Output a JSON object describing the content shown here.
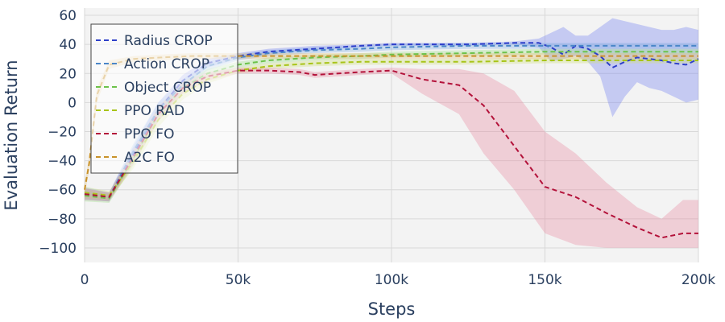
{
  "chart_data": {
    "type": "line",
    "xlabel": "Steps",
    "ylabel": "Evaluation Return",
    "xlim": [
      0,
      200000
    ],
    "ylim": [
      -110,
      65
    ],
    "x_ticks": [
      0,
      50000,
      100000,
      150000,
      200000
    ],
    "x_tick_labels": [
      "0",
      "50k",
      "100k",
      "150k",
      "200k"
    ],
    "y_ticks": [
      60,
      40,
      20,
      0,
      -20,
      -40,
      -60,
      -80,
      -100
    ],
    "y_tick_labels": [
      "60",
      "40",
      "20",
      "0",
      "−20",
      "−40",
      "−60",
      "−80",
      "−100"
    ],
    "grid": true,
    "legend_position": "top-left",
    "series": [
      {
        "name": "Radius CROP",
        "color": "#2e3fc9",
        "band_color": "#6f7df0",
        "x": [
          0,
          8000,
          16000,
          24000,
          32000,
          40000,
          50000,
          60000,
          75000,
          90000,
          100000,
          110000,
          125000,
          140000,
          148000,
          152000,
          156000,
          160000,
          164000,
          168000,
          172000,
          176000,
          180000,
          184000,
          188000,
          192000,
          196000,
          200000
        ],
        "values": [
          -63,
          -65,
          -35,
          -5,
          15,
          27,
          32,
          35,
          37,
          39,
          40,
          40,
          40,
          41,
          41,
          38,
          33,
          39,
          37,
          32,
          24,
          28,
          31,
          30,
          29,
          27,
          26,
          30
        ],
        "lower": [
          -67,
          -68,
          -40,
          -10,
          11,
          24,
          30,
          33,
          36,
          38,
          39,
          39,
          39,
          40,
          38,
          28,
          30,
          32,
          28,
          18,
          -10,
          4,
          14,
          10,
          8,
          4,
          0,
          2
        ],
        "upper": [
          -59,
          -62,
          -30,
          0,
          19,
          30,
          34,
          37,
          39,
          40,
          41,
          41,
          41,
          42,
          44,
          48,
          52,
          46,
          46,
          52,
          58,
          56,
          54,
          52,
          50,
          50,
          52,
          50
        ]
      },
      {
        "name": "Action CROP",
        "color": "#4a86c8",
        "band_color": "#7fb0e6",
        "x": [
          0,
          8000,
          16000,
          24000,
          32000,
          40000,
          50000,
          60000,
          75000,
          90000,
          100000,
          125000,
          150000,
          175000,
          200000
        ],
        "values": [
          -62,
          -65,
          -33,
          -5,
          12,
          25,
          31,
          34,
          36,
          37,
          38,
          39,
          39,
          39,
          39
        ],
        "lower": [
          -66,
          -68,
          -38,
          -10,
          8,
          22,
          29,
          32,
          34,
          35,
          36,
          37,
          37,
          37,
          37
        ],
        "upper": [
          -58,
          -62,
          -28,
          0,
          16,
          28,
          33,
          36,
          38,
          39,
          40,
          41,
          41,
          41,
          41
        ]
      },
      {
        "name": "Object CROP",
        "color": "#6cc24a",
        "band_color": "#9ee08a",
        "x": [
          0,
          8000,
          16000,
          24000,
          32000,
          40000,
          50000,
          60000,
          75000,
          90000,
          100000,
          125000,
          150000,
          175000,
          200000
        ],
        "values": [
          -64,
          -66,
          -38,
          -8,
          10,
          20,
          26,
          29,
          31,
          32,
          33,
          34,
          35,
          35,
          35
        ],
        "lower": [
          -68,
          -69,
          -43,
          -13,
          6,
          17,
          24,
          27,
          29,
          30,
          31,
          32,
          33,
          33,
          33
        ],
        "upper": [
          -60,
          -63,
          -33,
          -3,
          14,
          23,
          28,
          31,
          33,
          34,
          35,
          36,
          37,
          37,
          37
        ]
      },
      {
        "name": "PPO RAD",
        "color": "#a8c418",
        "band_color": "#cfe07a",
        "x": [
          0,
          8000,
          16000,
          24000,
          32000,
          40000,
          50000,
          60000,
          75000,
          90000,
          100000,
          125000,
          150000,
          175000,
          200000
        ],
        "values": [
          -62,
          -64,
          -40,
          -12,
          6,
          16,
          22,
          25,
          27,
          28,
          28,
          28,
          29,
          29,
          29
        ],
        "lower": [
          -66,
          -67,
          -45,
          -17,
          2,
          13,
          20,
          23,
          25,
          26,
          26,
          26,
          27,
          27,
          27
        ],
        "upper": [
          -58,
          -61,
          -35,
          -7,
          10,
          19,
          24,
          27,
          29,
          30,
          30,
          30,
          31,
          31,
          31
        ]
      },
      {
        "name": "PPO FO",
        "color": "#b3123a",
        "band_color": "#e88aa0",
        "x": [
          0,
          8000,
          16000,
          24000,
          32000,
          40000,
          50000,
          60000,
          70000,
          75000,
          90000,
          100000,
          110000,
          122000,
          130000,
          140000,
          150000,
          160000,
          170000,
          180000,
          188000,
          195000,
          200000
        ],
        "values": [
          -63,
          -65,
          -37,
          -8,
          10,
          18,
          22,
          22,
          21,
          19,
          21,
          22,
          16,
          12,
          -2,
          -30,
          -58,
          -65,
          -76,
          -86,
          -93,
          -90,
          -90
        ],
        "lower": [
          -67,
          -68,
          -42,
          -13,
          6,
          15,
          20,
          20,
          19,
          17,
          19,
          20,
          6,
          -8,
          -35,
          -60,
          -90,
          -98,
          -100,
          -100,
          -100,
          -100,
          -100
        ],
        "upper": [
          -59,
          -62,
          -32,
          -3,
          14,
          21,
          24,
          24,
          23,
          21,
          23,
          24,
          23,
          23,
          20,
          8,
          -20,
          -35,
          -55,
          -72,
          -80,
          -67,
          -67
        ]
      },
      {
        "name": "A2C FO",
        "color": "#c8922a",
        "band_color": "#e6c27a",
        "x": [
          0,
          1500,
          4000,
          8000,
          16000,
          25000,
          35000,
          40000,
          50000,
          60000,
          75000,
          90000,
          100000,
          125000,
          150000,
          175000,
          200000
        ],
        "values": [
          -60,
          -42,
          5,
          26,
          30,
          31,
          32,
          32,
          32,
          32,
          32,
          32,
          32,
          32,
          32,
          32,
          32
        ],
        "lower": [
          -64,
          -47,
          0,
          23,
          28,
          29,
          30,
          30,
          30,
          30,
          30,
          30,
          30,
          30,
          30,
          30,
          30
        ],
        "upper": [
          -56,
          -37,
          10,
          29,
          32,
          33,
          34,
          34,
          34,
          34,
          34,
          34,
          34,
          34,
          34,
          34,
          34
        ]
      }
    ]
  }
}
